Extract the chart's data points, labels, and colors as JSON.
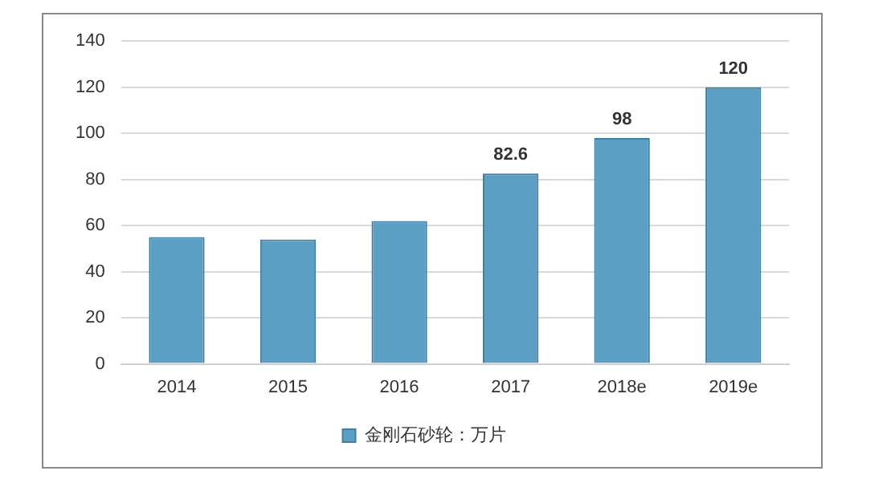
{
  "chart_data": {
    "type": "bar",
    "categories": [
      "2014",
      "2015",
      "2016",
      "2017",
      "2018e",
      "2019e"
    ],
    "series": [
      {
        "name": "金刚石砂轮：万片",
        "color": "#5b9fc4",
        "values": [
          55,
          54,
          62,
          82.6,
          98,
          120
        ],
        "value_labels": [
          null,
          null,
          null,
          "82.6",
          "98",
          "120"
        ]
      }
    ],
    "ylim": [
      0,
      140
    ],
    "yticks": [
      0,
      20,
      40,
      60,
      80,
      100,
      120,
      140
    ],
    "grid": "y",
    "legend": "bottom"
  }
}
